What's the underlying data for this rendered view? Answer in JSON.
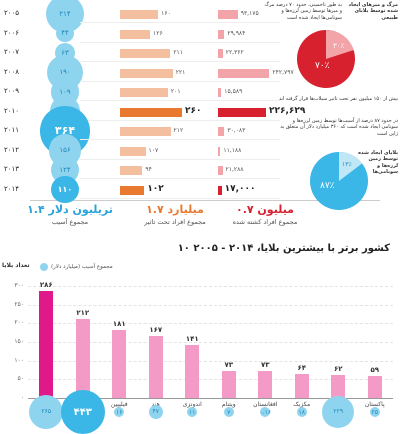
{
  "timeline": {
    "years": [
      "۲۰۰۵",
      "۲۰۰۶",
      "۲۰۰۷",
      "۲۰۰۸",
      "۲۰۰۹",
      "۲۰۱۰",
      "۲۰۱۱",
      "۲۰۱۲",
      "۲۰۱۳",
      "۲۰۱۴"
    ],
    "damage_labels": [
      "۲۱۴",
      "۴۴",
      "۶۳",
      "۱۹۰",
      "۱۰۹",
      "۱۳۴",
      "۳۶۴",
      "۱۵۶",
      "۱۲۴",
      "۱۱۰"
    ],
    "affected_labels": [
      "۱۶۰",
      "۱۲۶",
      "۲۱۱",
      "۲۲۱",
      "۲۰۱",
      "۲۶۰",
      "۲۱۲",
      "۱۰۷",
      "۹۴",
      "۱۰۲"
    ],
    "killed_labels": [
      "۹۳,۱۷۵",
      "۲۹,۹۸۴",
      "۲۲,۳۶۲",
      "۲۴۲,۷۹۷",
      "۱۵,۵۸۹",
      "۲۲۶,۶۲۹",
      "۳۰,۰۸۳",
      "۱۱,۱۸۸",
      "۲۱,۲۸۸",
      "۱۷,۰۰۰"
    ],
    "summary": {
      "damage_total": "۱.۴ تریلیون دلار",
      "damage_caption": "مجموع آسیب",
      "affected_total": "۱.۷ میلیارد",
      "affected_caption": "مجموع افراد تحت تاثیر",
      "killed_total": "۰.۷ میلیون",
      "killed_caption": "مجموع افراد کشته شده"
    },
    "notes": {
      "top_right": "مرگ و میرهای ایجاد شده توسط بلایای طبیعی",
      "top_left": "به طور تاخمینی، حدود ۷۰ درصد مرگ و میرها توسط زمین لرزه‌ها و سونامی‌ها ایجاد شده است",
      "mid": "بیش از ۱۵۰ میلیون نفر تحت تاثیر سیلاب‌ها قرار گرفته اند",
      "mid2": "در حدود ۸۷ درصد از آسیب‌ها توسط زمین لرزه‌ها و سونامی ایجاد شده است که ۳۶۰ میلیارد دلار آن متعلق به ژاپن است",
      "bottom": "بلایای ایجاد شده توسط زمین لرزه‌ها و سونامی‌ها"
    },
    "pie_top": {
      "label": "۷۰٪",
      "label_small": "۳۰٪"
    },
    "pie_bottom": {
      "label": "۸۷٪",
      "label_small": "۱۳٪"
    },
    "colors": {
      "blue": "#3ab7e6",
      "orange": "#e8792f",
      "red": "#d8212f",
      "pink": "#e0198a"
    }
  },
  "chart_data": {
    "type": "bar",
    "title": "۱۰ کشور برتر با بیشترین بلایا، ۲۰۱۴ - ۲۰۰۵",
    "ylabel": "تعداد بلایا",
    "legend_label": "مجموع آسیب (میلیارد دلار)",
    "ylim": [
      0,
      300
    ],
    "y_ticks": [
      "۰",
      "۵۰",
      "۱۰۰",
      "۱۵۰",
      "۲۰۰",
      "۲۵۰",
      "۳۰۰"
    ],
    "categories": [
      "چین",
      "امریکا",
      "فیلیپین",
      "هند",
      "اندونزی",
      "ویتنام",
      "افغانستان",
      "مکزیک",
      "ژاپن",
      "پاکستان"
    ],
    "values": [
      286,
      212,
      181,
      167,
      141,
      73,
      73,
      64,
      62,
      59
    ],
    "value_labels": [
      "۲۸۶",
      "۲۱۲",
      "۱۸۱",
      "۱۶۷",
      "۱۴۱",
      "۷۳",
      "۷۳",
      "۶۴",
      "۶۲",
      "۵۹"
    ],
    "damage": [
      265,
      443,
      16,
      47,
      11,
      7,
      0.16,
      18,
      229,
      25
    ],
    "damage_labels": [
      "۲۶۵",
      "۴۴۳",
      "۱۶",
      "۴۷",
      "۱۱",
      "۷",
      "۰.۱۶",
      "۱۸",
      "۲۲۹",
      "۲۵"
    ]
  }
}
